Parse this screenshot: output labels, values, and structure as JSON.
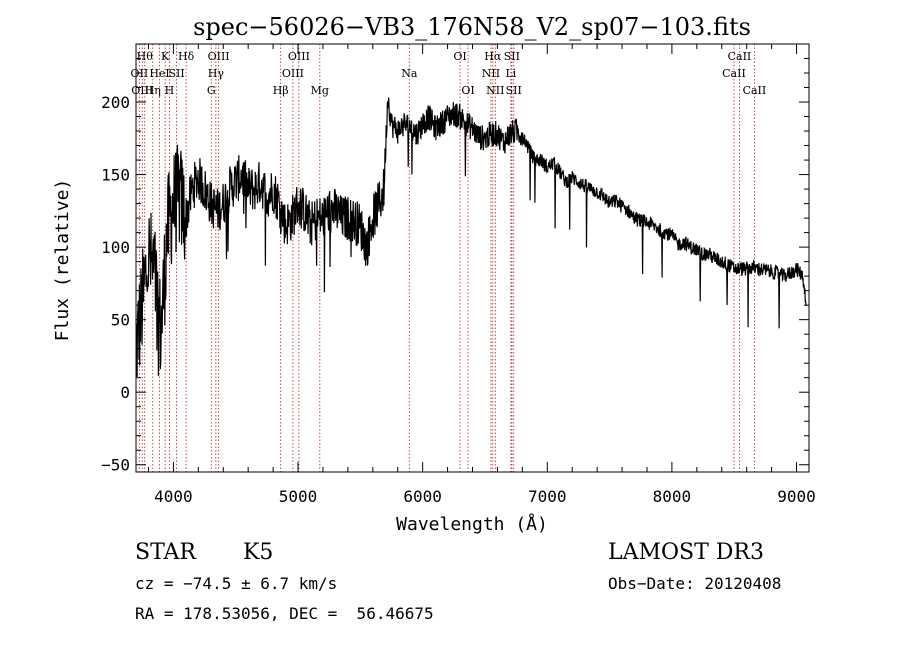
{
  "chart_data": {
    "type": "line",
    "title": "spec−56026−VB3_176N58_V2_sp07−103.fits",
    "xlabel": "Wavelength (Å)",
    "ylabel": "Flux (relative)",
    "xlim": [
      3700,
      9100
    ],
    "ylim": [
      -55,
      240
    ],
    "x_ticks": [
      4000,
      5000,
      6000,
      7000,
      8000,
      9000
    ],
    "y_ticks": [
      -50,
      0,
      50,
      100,
      150,
      200
    ],
    "y_tick_labels": [
      "−50",
      "0",
      "50",
      "100",
      "150",
      "200"
    ],
    "line_color": "#000000",
    "marker_color": "#b22222",
    "spectrum": {
      "x": [
        3700,
        3750,
        3800,
        3850,
        3900,
        3950,
        4000,
        4050,
        4100,
        4150,
        4200,
        4250,
        4300,
        4350,
        4400,
        4450,
        4500,
        4550,
        4600,
        4650,
        4700,
        4750,
        4800,
        4850,
        4900,
        4950,
        5000,
        5050,
        5100,
        5150,
        5200,
        5250,
        5300,
        5350,
        5400,
        5450,
        5500,
        5550,
        5600,
        5650,
        5690,
        5720,
        5750,
        5800,
        5850,
        5900,
        5950,
        6000,
        6050,
        6100,
        6150,
        6200,
        6250,
        6300,
        6350,
        6400,
        6450,
        6500,
        6550,
        6600,
        6650,
        6700,
        6750,
        6800,
        6850,
        6900,
        6950,
        7000,
        7050,
        7100,
        7150,
        7200,
        7250,
        7300,
        7350,
        7400,
        7450,
        7500,
        7550,
        7600,
        7650,
        7700,
        7750,
        7800,
        7850,
        7900,
        7950,
        8000,
        8050,
        8100,
        8150,
        8200,
        8250,
        8300,
        8350,
        8400,
        8450,
        8500,
        8550,
        8600,
        8650,
        8700,
        8750,
        8800,
        8850,
        8900,
        8950,
        9000,
        9050,
        9080
      ],
      "y": [
        30,
        60,
        95,
        80,
        40,
        110,
        130,
        135,
        120,
        140,
        148,
        140,
        130,
        125,
        130,
        140,
        145,
        150,
        140,
        140,
        145,
        135,
        140,
        130,
        115,
        120,
        130,
        125,
        115,
        120,
        120,
        125,
        125,
        120,
        120,
        118,
        115,
        100,
        120,
        130,
        140,
        205,
        185,
        180,
        185,
        183,
        178,
        185,
        190,
        182,
        185,
        190,
        192,
        190,
        185,
        182,
        176,
        175,
        178,
        178,
        172,
        178,
        180,
        178,
        168,
        160,
        160,
        155,
        158,
        152,
        145,
        148,
        145,
        142,
        140,
        138,
        135,
        130,
        132,
        128,
        125,
        120,
        118,
        117,
        115,
        112,
        110,
        108,
        102,
        103,
        100,
        98,
        95,
        95,
        92,
        90,
        88,
        85,
        85,
        85,
        86,
        85,
        84,
        83,
        82,
        80,
        82,
        85,
        80,
        60
      ]
    },
    "lines": [
      {
        "wave": 3727,
        "label": "OII",
        "tier": 1
      },
      {
        "wave": 3750,
        "label": "OIII",
        "tier": 2
      },
      {
        "wave": 3770,
        "label": "Hθ",
        "tier": 0
      },
      {
        "wave": 3835,
        "label": "Hη",
        "tier": 2
      },
      {
        "wave": 3889,
        "label": "HeI",
        "tier": 1
      },
      {
        "wave": 3934,
        "label": "K",
        "tier": 0
      },
      {
        "wave": 3968,
        "label": "H",
        "tier": 2
      },
      {
        "wave": 4026,
        "label": "SII",
        "tier": 1
      },
      {
        "wave": 4102,
        "label": "Hδ",
        "tier": 0
      },
      {
        "wave": 4304,
        "label": "G",
        "tier": 2
      },
      {
        "wave": 4341,
        "label": "Hγ",
        "tier": 1
      },
      {
        "wave": 4363,
        "label": "OIII",
        "tier": 0
      },
      {
        "wave": 4861,
        "label": "Hβ",
        "tier": 2
      },
      {
        "wave": 4959,
        "label": "OIII",
        "tier": 1
      },
      {
        "wave": 5007,
        "label": "OIII",
        "tier": 0
      },
      {
        "wave": 5175,
        "label": "Mg",
        "tier": 2
      },
      {
        "wave": 5893,
        "label": "Na",
        "tier": 1
      },
      {
        "wave": 6300,
        "label": "OI",
        "tier": 0
      },
      {
        "wave": 6364,
        "label": "OI",
        "tier": 2
      },
      {
        "wave": 6548,
        "label": "NII",
        "tier": 1
      },
      {
        "wave": 6563,
        "label": "Hα",
        "tier": 0
      },
      {
        "wave": 6583,
        "label": "NII",
        "tier": 2
      },
      {
        "wave": 6708,
        "label": "Li",
        "tier": 1
      },
      {
        "wave": 6716,
        "label": "SII",
        "tier": 0
      },
      {
        "wave": 6731,
        "label": "SII",
        "tier": 2
      },
      {
        "wave": 8498,
        "label": "CaII",
        "tier": 1
      },
      {
        "wave": 8542,
        "label": "CaII",
        "tier": 0
      },
      {
        "wave": 8662,
        "label": "CaII",
        "tier": 2
      }
    ]
  },
  "info": {
    "object_class": "STAR",
    "subclass": "K5",
    "survey": "LAMOST DR3",
    "cz": "cz = −74.5 ± 6.7 km/s",
    "obs_date": "Obs−Date: 20120408",
    "radec": "RA = 178.53056, DEC =  56.46675"
  }
}
